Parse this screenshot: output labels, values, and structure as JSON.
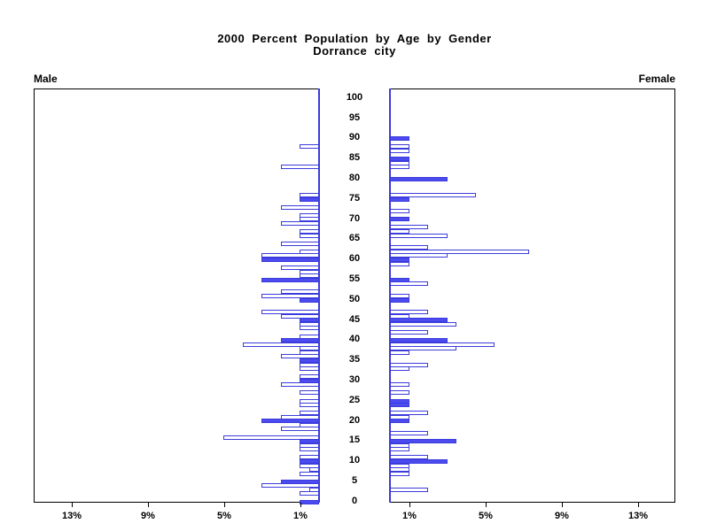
{
  "title": {
    "line1": "2000 Percent Population by Age by Gender",
    "line2": "Dorrance city"
  },
  "panels": {
    "male_label": "Male",
    "female_label": "Female"
  },
  "age_axis": {
    "tick_labels": [
      "0",
      "5",
      "10",
      "15",
      "20",
      "25",
      "30",
      "35",
      "40",
      "45",
      "50",
      "55",
      "60",
      "65",
      "70",
      "75",
      "80",
      "85",
      "90",
      "95",
      "100"
    ],
    "tick_values": [
      0,
      5,
      10,
      15,
      20,
      25,
      30,
      35,
      40,
      45,
      50,
      55,
      60,
      65,
      70,
      75,
      80,
      85,
      90,
      95,
      100
    ]
  },
  "pct_axis": {
    "tick_values": [
      1,
      5,
      9,
      13
    ],
    "male_tick_labels": [
      "1%",
      "5%",
      "9%",
      "13%"
    ],
    "female_tick_labels": [
      "1%",
      "5%",
      "9%",
      "13%"
    ]
  },
  "colors": {
    "bar_fill": "#4b4bf0",
    "bar_border": "#3c3cdc",
    "axis": "#000000",
    "background": "#ffffff"
  },
  "chart_data": {
    "type": "bar",
    "subtype": "population-pyramid",
    "title": "2000 Percent Population by Age by Gender",
    "subtitle": "Dorrance city",
    "orientation": "horizontal",
    "x_unit": "percent of gender population",
    "age_range": [
      0,
      100
    ],
    "pct_range_each_side": [
      0,
      15
    ],
    "grid": false,
    "legend": "none",
    "bar_style_note": "filled = solid blue bar (mostly ages at 5-year multiples), outline = white bar with blue border (single years of age)",
    "series": [
      {
        "name": "Male",
        "side": "left",
        "points": [
          {
            "age": 0,
            "pct": 1,
            "filled": 1
          },
          {
            "age": 2,
            "pct": 1,
            "filled": 0
          },
          {
            "age": 3,
            "pct": 0.5,
            "filled": 0
          },
          {
            "age": 4,
            "pct": 3,
            "filled": 0
          },
          {
            "age": 5,
            "pct": 2,
            "filled": 1
          },
          {
            "age": 7,
            "pct": 1,
            "filled": 0
          },
          {
            "age": 8,
            "pct": 0.5,
            "filled": 0
          },
          {
            "age": 9,
            "pct": 1,
            "filled": 0
          },
          {
            "age": 10,
            "pct": 1,
            "filled": 1
          },
          {
            "age": 11,
            "pct": 1,
            "filled": 0
          },
          {
            "age": 13,
            "pct": 1,
            "filled": 0
          },
          {
            "age": 14,
            "pct": 1,
            "filled": 0
          },
          {
            "age": 15,
            "pct": 1,
            "filled": 1
          },
          {
            "age": 16,
            "pct": 5,
            "filled": 0
          },
          {
            "age": 18,
            "pct": 2,
            "filled": 0
          },
          {
            "age": 19,
            "pct": 1,
            "filled": 0
          },
          {
            "age": 20,
            "pct": 3,
            "filled": 1
          },
          {
            "age": 21,
            "pct": 2,
            "filled": 0
          },
          {
            "age": 22,
            "pct": 1,
            "filled": 0
          },
          {
            "age": 24,
            "pct": 1,
            "filled": 0
          },
          {
            "age": 25,
            "pct": 1,
            "filled": 0
          },
          {
            "age": 27,
            "pct": 1,
            "filled": 0
          },
          {
            "age": 29,
            "pct": 2,
            "filled": 0
          },
          {
            "age": 30,
            "pct": 1,
            "filled": 1
          },
          {
            "age": 31,
            "pct": 1,
            "filled": 0
          },
          {
            "age": 33,
            "pct": 1,
            "filled": 0
          },
          {
            "age": 34,
            "pct": 1,
            "filled": 0
          },
          {
            "age": 35,
            "pct": 1,
            "filled": 1
          },
          {
            "age": 36,
            "pct": 2,
            "filled": 0
          },
          {
            "age": 37,
            "pct": 1,
            "filled": 0
          },
          {
            "age": 38,
            "pct": 1,
            "filled": 0
          },
          {
            "age": 39,
            "pct": 4,
            "filled": 0
          },
          {
            "age": 40,
            "pct": 2,
            "filled": 1
          },
          {
            "age": 41,
            "pct": 1,
            "filled": 0
          },
          {
            "age": 43,
            "pct": 1,
            "filled": 0
          },
          {
            "age": 44,
            "pct": 1,
            "filled": 0
          },
          {
            "age": 45,
            "pct": 1,
            "filled": 1
          },
          {
            "age": 46,
            "pct": 2,
            "filled": 0
          },
          {
            "age": 47,
            "pct": 3,
            "filled": 0
          },
          {
            "age": 50,
            "pct": 1,
            "filled": 1
          },
          {
            "age": 51,
            "pct": 3,
            "filled": 0
          },
          {
            "age": 52,
            "pct": 2,
            "filled": 0
          },
          {
            "age": 55,
            "pct": 3,
            "filled": 1
          },
          {
            "age": 56,
            "pct": 1,
            "filled": 0
          },
          {
            "age": 57,
            "pct": 1,
            "filled": 0
          },
          {
            "age": 58,
            "pct": 2,
            "filled": 0
          },
          {
            "age": 60,
            "pct": 3,
            "filled": 1
          },
          {
            "age": 61,
            "pct": 3,
            "filled": 0
          },
          {
            "age": 62,
            "pct": 1,
            "filled": 0
          },
          {
            "age": 64,
            "pct": 2,
            "filled": 0
          },
          {
            "age": 66,
            "pct": 1,
            "filled": 0
          },
          {
            "age": 67,
            "pct": 1,
            "filled": 0
          },
          {
            "age": 69,
            "pct": 2,
            "filled": 0
          },
          {
            "age": 70,
            "pct": 1,
            "filled": 0
          },
          {
            "age": 71,
            "pct": 1,
            "filled": 0
          },
          {
            "age": 73,
            "pct": 2,
            "filled": 0
          },
          {
            "age": 75,
            "pct": 1,
            "filled": 1
          },
          {
            "age": 76,
            "pct": 1,
            "filled": 0
          },
          {
            "age": 83,
            "pct": 2,
            "filled": 0
          },
          {
            "age": 88,
            "pct": 1,
            "filled": 0
          }
        ]
      },
      {
        "name": "Female",
        "side": "right",
        "points": [
          {
            "age": 3,
            "pct": 2,
            "filled": 0
          },
          {
            "age": 7,
            "pct": 1,
            "filled": 0
          },
          {
            "age": 8,
            "pct": 1,
            "filled": 0
          },
          {
            "age": 9,
            "pct": 1,
            "filled": 0
          },
          {
            "age": 10,
            "pct": 3,
            "filled": 1
          },
          {
            "age": 11,
            "pct": 2,
            "filled": 0
          },
          {
            "age": 13,
            "pct": 1,
            "filled": 0
          },
          {
            "age": 14,
            "pct": 1,
            "filled": 0
          },
          {
            "age": 15,
            "pct": 3.5,
            "filled": 1
          },
          {
            "age": 17,
            "pct": 2,
            "filled": 0
          },
          {
            "age": 20,
            "pct": 1,
            "filled": 1
          },
          {
            "age": 21,
            "pct": 1,
            "filled": 0
          },
          {
            "age": 22,
            "pct": 2,
            "filled": 0
          },
          {
            "age": 24,
            "pct": 1,
            "filled": 1
          },
          {
            "age": 25,
            "pct": 1,
            "filled": 1
          },
          {
            "age": 27,
            "pct": 1,
            "filled": 0
          },
          {
            "age": 29,
            "pct": 1,
            "filled": 0
          },
          {
            "age": 33,
            "pct": 1,
            "filled": 0
          },
          {
            "age": 34,
            "pct": 2,
            "filled": 0
          },
          {
            "age": 37,
            "pct": 1,
            "filled": 0
          },
          {
            "age": 38,
            "pct": 3.5,
            "filled": 0
          },
          {
            "age": 39,
            "pct": 5.5,
            "filled": 0
          },
          {
            "age": 40,
            "pct": 3,
            "filled": 1
          },
          {
            "age": 42,
            "pct": 2,
            "filled": 0
          },
          {
            "age": 44,
            "pct": 3.5,
            "filled": 0
          },
          {
            "age": 45,
            "pct": 3,
            "filled": 1
          },
          {
            "age": 46,
            "pct": 1,
            "filled": 0
          },
          {
            "age": 47,
            "pct": 2,
            "filled": 0
          },
          {
            "age": 50,
            "pct": 1,
            "filled": 1
          },
          {
            "age": 51,
            "pct": 1,
            "filled": 0
          },
          {
            "age": 54,
            "pct": 2,
            "filled": 0
          },
          {
            "age": 55,
            "pct": 1,
            "filled": 1
          },
          {
            "age": 59,
            "pct": 1,
            "filled": 0
          },
          {
            "age": 60,
            "pct": 1,
            "filled": 1
          },
          {
            "age": 61,
            "pct": 3,
            "filled": 0
          },
          {
            "age": 62,
            "pct": 7.3,
            "filled": 0
          },
          {
            "age": 63,
            "pct": 2,
            "filled": 0
          },
          {
            "age": 66,
            "pct": 3,
            "filled": 0
          },
          {
            "age": 67,
            "pct": 1,
            "filled": 0
          },
          {
            "age": 68,
            "pct": 2,
            "filled": 0
          },
          {
            "age": 70,
            "pct": 1,
            "filled": 1
          },
          {
            "age": 72,
            "pct": 1,
            "filled": 0
          },
          {
            "age": 75,
            "pct": 1,
            "filled": 1
          },
          {
            "age": 76,
            "pct": 4.5,
            "filled": 0
          },
          {
            "age": 80,
            "pct": 3,
            "filled": 1
          },
          {
            "age": 83,
            "pct": 1,
            "filled": 0
          },
          {
            "age": 84,
            "pct": 1,
            "filled": 0
          },
          {
            "age": 85,
            "pct": 1,
            "filled": 1
          },
          {
            "age": 87,
            "pct": 1,
            "filled": 0
          },
          {
            "age": 88,
            "pct": 1,
            "filled": 0
          },
          {
            "age": 90,
            "pct": 1,
            "filled": 1
          }
        ]
      }
    ]
  }
}
